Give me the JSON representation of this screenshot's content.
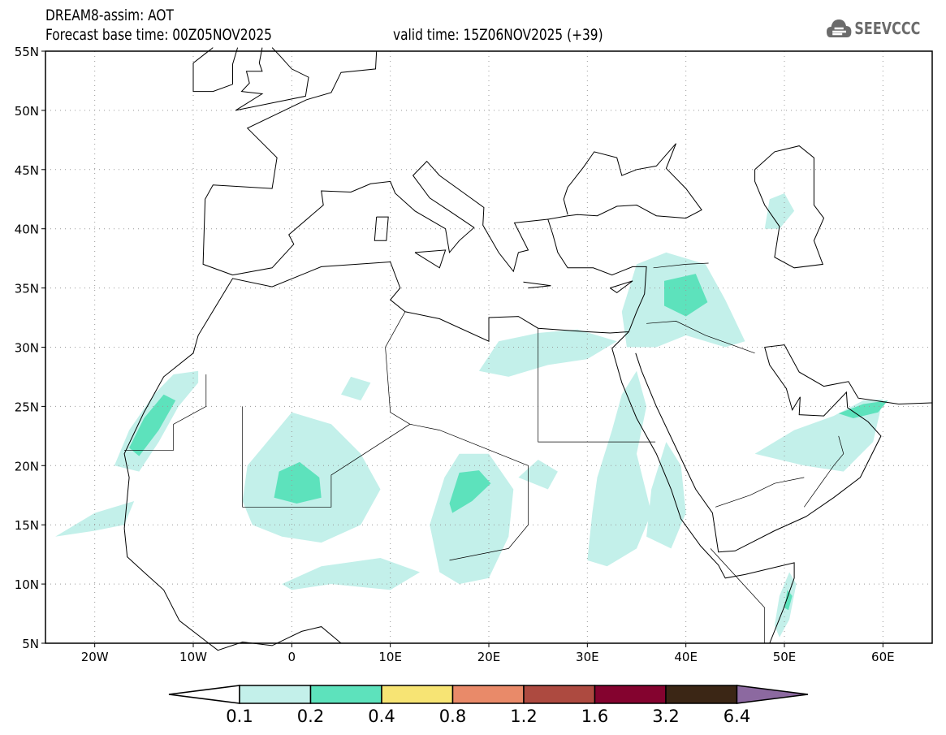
{
  "header": {
    "title": "DREAM8-assim: AOT",
    "base_time": "Forecast base time: 00Z05NOV2025",
    "valid_time": "valid time: 15Z06NOV2025 (+39)",
    "logo_text": "SEEVCCC"
  },
  "map": {
    "lon_range": [
      -25,
      65
    ],
    "lat_range": [
      5,
      55
    ],
    "lat_labels": [
      "55N",
      "50N",
      "45N",
      "40N",
      "35N",
      "30N",
      "25N",
      "20N",
      "15N",
      "10N",
      "5N"
    ],
    "lat_values": [
      55,
      50,
      45,
      40,
      35,
      30,
      25,
      20,
      15,
      10,
      5
    ],
    "lon_labels": [
      "20W",
      "10W",
      "0",
      "10E",
      "20E",
      "30E",
      "40E",
      "50E",
      "60E"
    ],
    "lon_values": [
      -20,
      -10,
      0,
      10,
      20,
      30,
      40,
      50,
      60
    ]
  },
  "colorbar": {
    "labels": [
      "0.1",
      "0.2",
      "0.4",
      "0.8",
      "1.2",
      "1.6",
      "3.2",
      "6.4"
    ],
    "colors": [
      "#ffffff",
      "#c3f0ea",
      "#5de2bc",
      "#f7e474",
      "#e98a69",
      "#ad4a40",
      "#84032f",
      "#3b2615",
      "#8c69a0"
    ]
  }
}
